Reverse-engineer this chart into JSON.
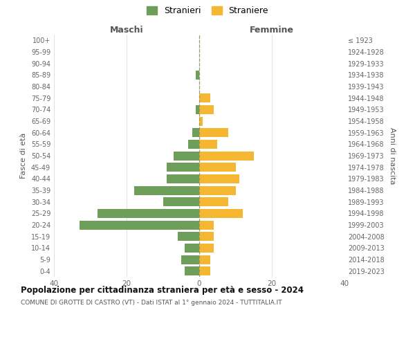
{
  "age_groups": [
    "0-4",
    "5-9",
    "10-14",
    "15-19",
    "20-24",
    "25-29",
    "30-34",
    "35-39",
    "40-44",
    "45-49",
    "50-54",
    "55-59",
    "60-64",
    "65-69",
    "70-74",
    "75-79",
    "80-84",
    "85-89",
    "90-94",
    "95-99",
    "100+"
  ],
  "birth_years": [
    "2019-2023",
    "2014-2018",
    "2009-2013",
    "2004-2008",
    "1999-2003",
    "1994-1998",
    "1989-1993",
    "1984-1988",
    "1979-1983",
    "1974-1978",
    "1969-1973",
    "1964-1968",
    "1959-1963",
    "1954-1958",
    "1949-1953",
    "1944-1948",
    "1939-1943",
    "1934-1938",
    "1929-1933",
    "1924-1928",
    "≤ 1923"
  ],
  "maschi": [
    4,
    5,
    4,
    6,
    33,
    28,
    10,
    18,
    9,
    9,
    7,
    3,
    2,
    0,
    1,
    0,
    0,
    1,
    0,
    0,
    0
  ],
  "femmine": [
    3,
    3,
    4,
    4,
    4,
    12,
    8,
    10,
    11,
    10,
    15,
    5,
    8,
    1,
    4,
    3,
    0,
    0,
    0,
    0,
    0
  ],
  "maschi_color": "#6d9e5a",
  "femmine_color": "#f5b731",
  "title": "Popolazione per cittadinanza straniera per età e sesso - 2024",
  "subtitle": "COMUNE DI GROTTE DI CASTRO (VT) - Dati ISTAT al 1° gennaio 2024 - TUTTITALIA.IT",
  "xlabel_left": "Maschi",
  "xlabel_right": "Femmine",
  "ylabel_left": "Fasce di età",
  "ylabel_right": "Anni di nascita",
  "legend_maschi": "Stranieri",
  "legend_femmine": "Straniere",
  "xlim": 40,
  "bar_height": 0.78,
  "background_color": "#ffffff",
  "grid_color": "#dddddd",
  "figsize": [
    6.0,
    5.0
  ],
  "dpi": 100
}
